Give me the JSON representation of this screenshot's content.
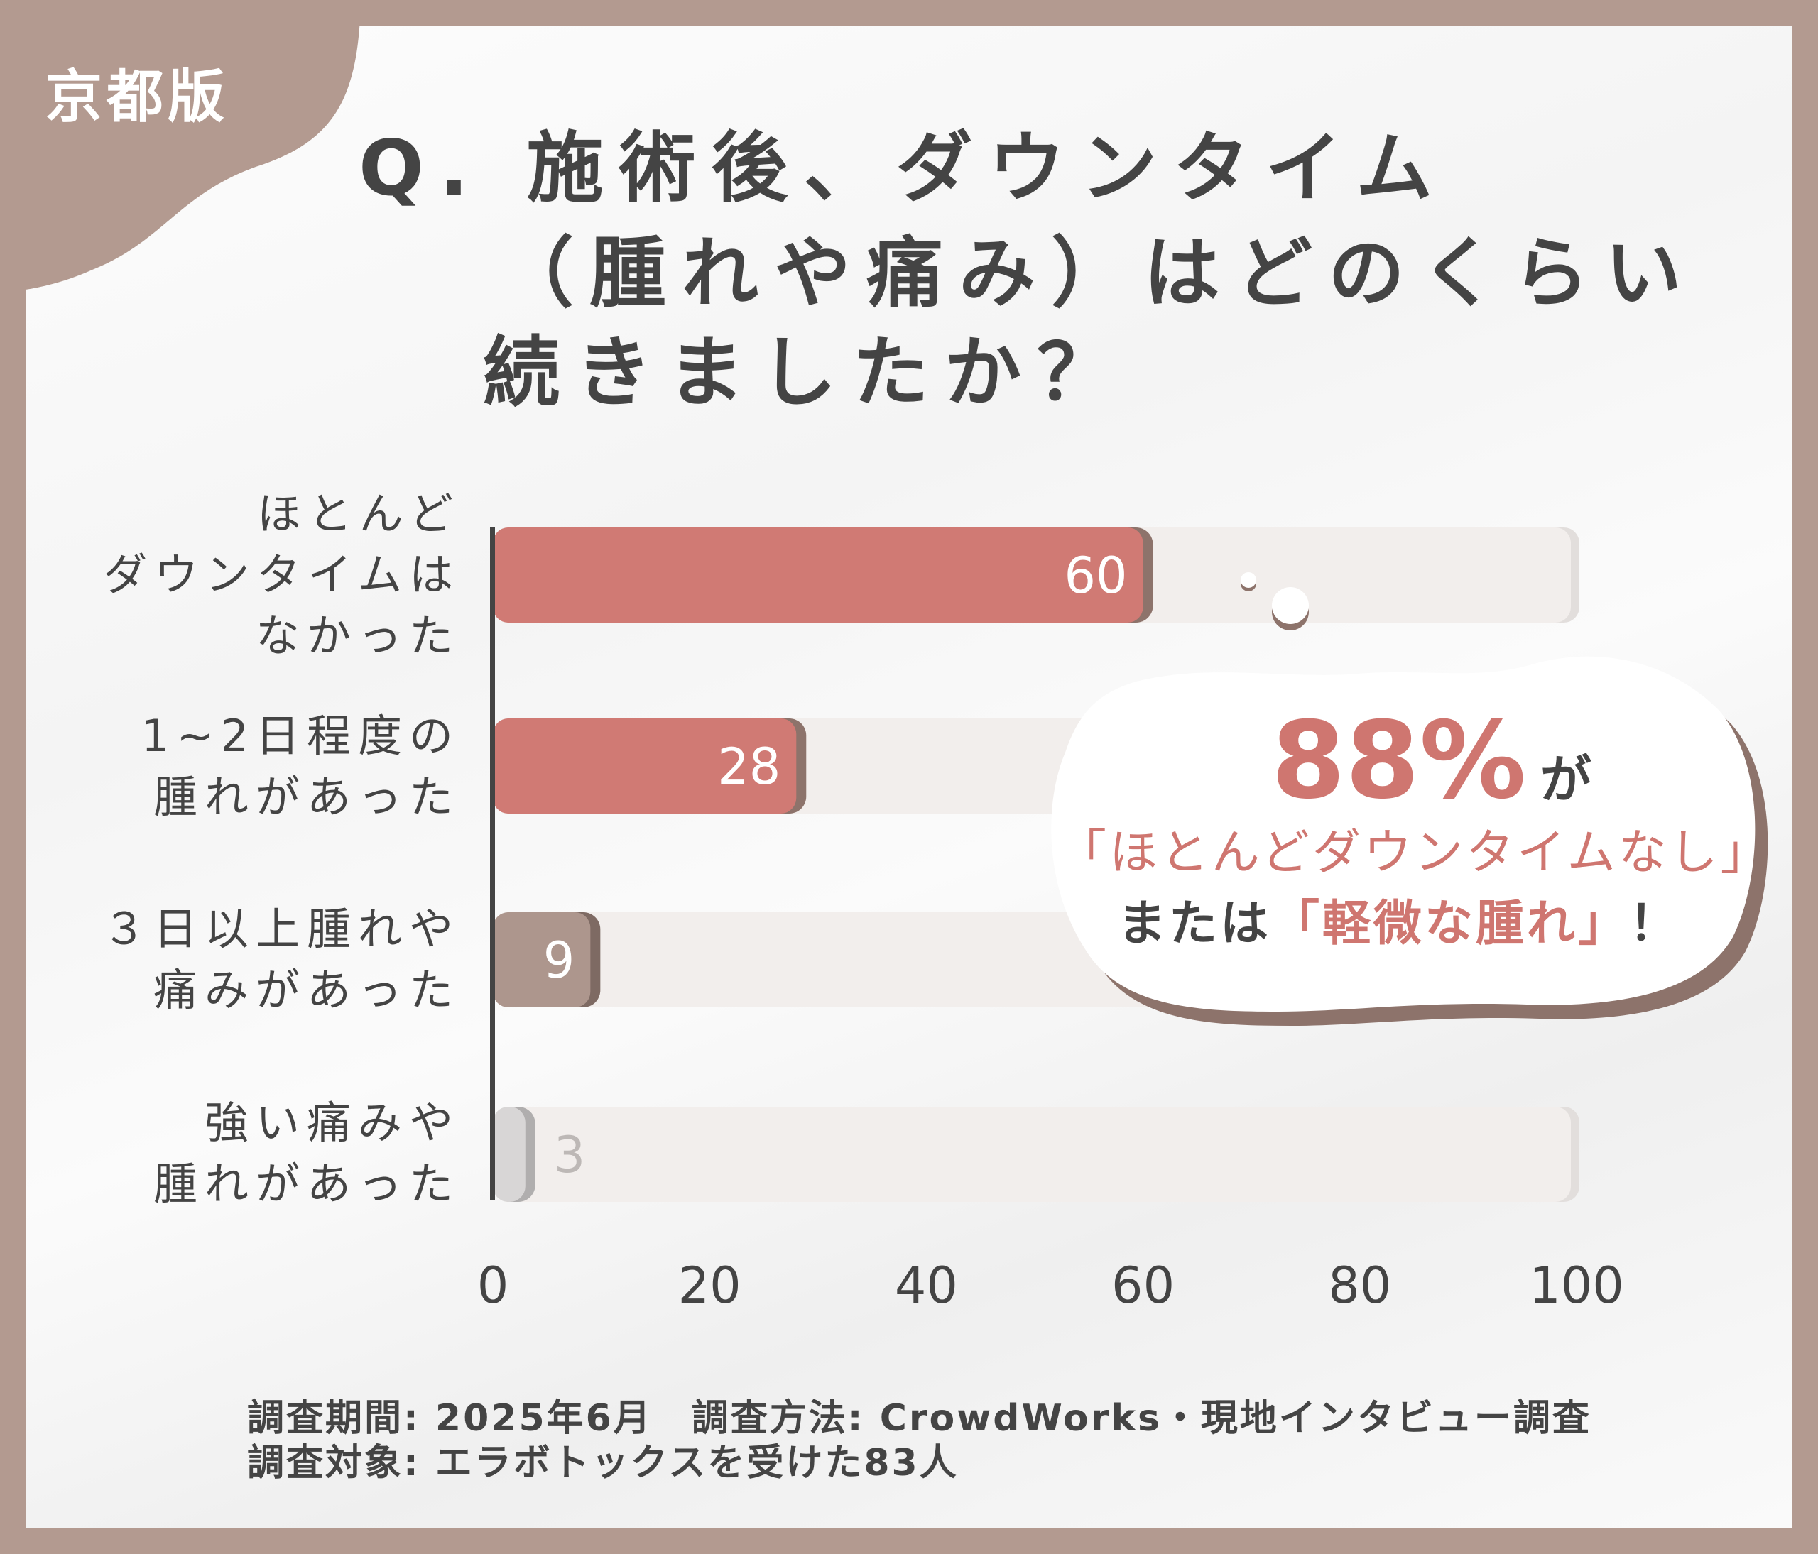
{
  "badge": "京都版",
  "title": {
    "line1": "Q. 施術後、ダウンタイム",
    "line2": "（腫れや痛み）はどのくらい",
    "line3": "続きましたか？"
  },
  "colors": {
    "frame": "#b39a90",
    "bar_main": "#d07a74",
    "bar_secondary": "#ad968d",
    "bar_minor": "#d8d6d6",
    "track": "#f2eeec",
    "accent_text": "#cf7670",
    "text": "#444444"
  },
  "chart_data": {
    "type": "bar",
    "orientation": "horizontal",
    "categories": [
      "ほとんど\nダウンタイムは\nなかった",
      "1~2日程度の\n腫れがあった",
      "３日以上腫れや\n痛みがあった",
      "強い痛みや\n腫れがあった"
    ],
    "values": [
      60,
      28,
      9,
      3
    ],
    "data_labels": [
      "60",
      "28",
      "9",
      "3"
    ],
    "xlim": [
      0,
      100
    ],
    "x_ticks": [
      "0",
      "20",
      "40",
      "60",
      "80",
      "100"
    ],
    "grid": false
  },
  "callout": {
    "percent": "88%",
    "particle": "が",
    "quote1": "「ほとんどダウンタイムなし」",
    "or": "または",
    "quote2": "「軽微な腫れ」",
    "exclaim": "！"
  },
  "footer": {
    "line1": "調査期間: 2025年6月　調査方法: CrowdWorks・現地インタビュー調査",
    "line2": "調査対象: エラボトックスを受けた83人"
  }
}
